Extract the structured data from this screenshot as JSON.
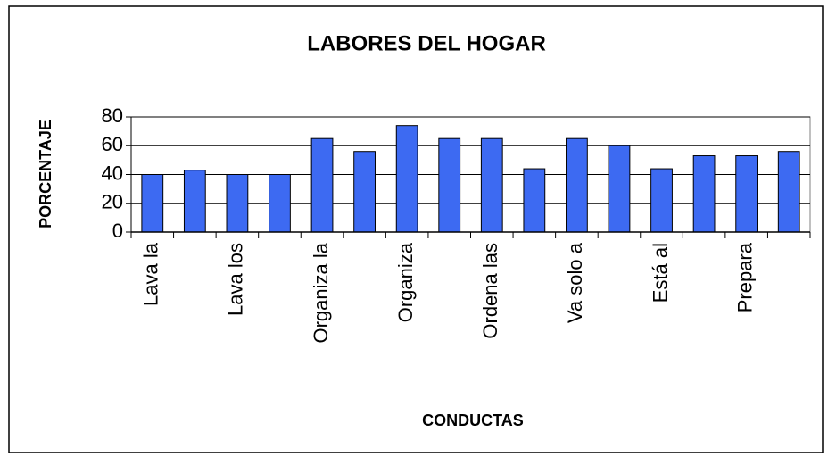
{
  "chart_data": {
    "type": "bar",
    "title": "LABORES DEL HOGAR",
    "x_label": "CONDUCTAS",
    "y_label": "PORCENTAJE",
    "categories": [
      "Lava la",
      null,
      "Lava los",
      null,
      "Organiza la",
      null,
      "Organiza",
      null,
      "Ordena las",
      null,
      "Va solo a",
      null,
      "Está al",
      null,
      "Prepara",
      null
    ],
    "values": [
      40,
      43,
      40,
      40,
      65,
      56,
      74,
      65,
      65,
      44,
      65,
      60,
      44,
      53,
      53,
      56
    ],
    "color": "#3d6af2",
    "ylim": [
      0,
      80
    ],
    "yticks": [
      0,
      20,
      40,
      60,
      80
    ],
    "grid": true
  }
}
